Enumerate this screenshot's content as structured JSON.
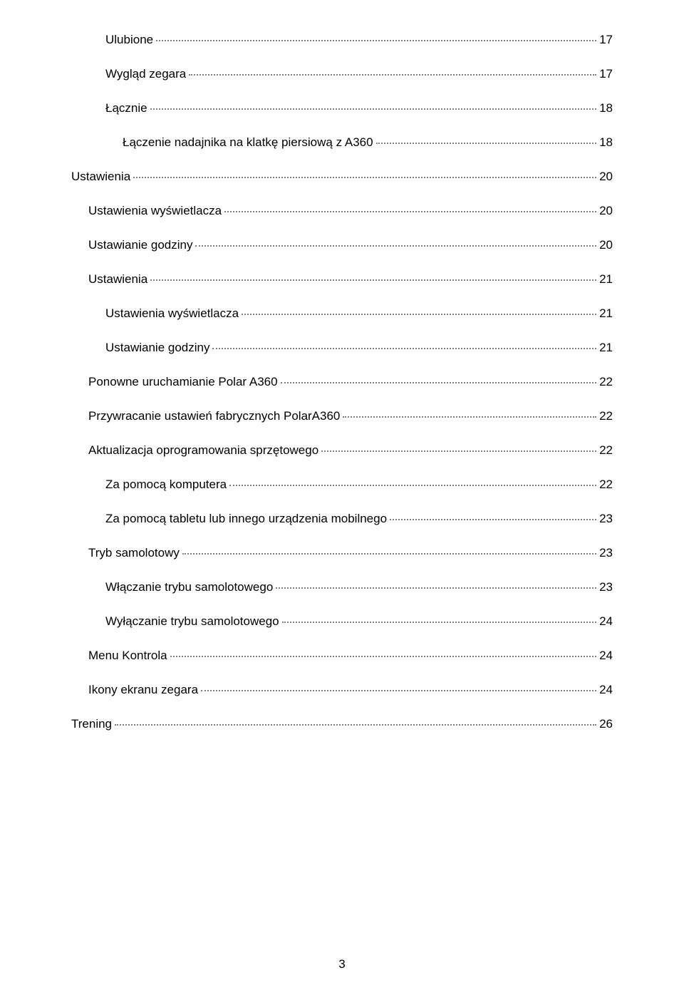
{
  "text_color": "#000000",
  "dot_color": "#808080",
  "background_color": "#ffffff",
  "font_size": 17,
  "line_spacing": 28,
  "indent_step": 24,
  "page_number": "3",
  "toc": [
    {
      "label": "Ulubione",
      "page": "17",
      "level": 2
    },
    {
      "label": "Wygląd zegara",
      "page": "17",
      "level": 2
    },
    {
      "label": "Łącznie",
      "page": "18",
      "level": 2
    },
    {
      "label": "Łączenie nadajnika na klatkę piersiową z A360",
      "page": "18",
      "level": 3
    },
    {
      "label": "Ustawienia",
      "page": "20",
      "level": 0
    },
    {
      "label": "Ustawienia wyświetlacza",
      "page": "20",
      "level": 1
    },
    {
      "label": "Ustawianie godziny",
      "page": "20",
      "level": 1
    },
    {
      "label": "Ustawienia",
      "page": "21",
      "level": 1
    },
    {
      "label": "Ustawienia wyświetlacza",
      "page": "21",
      "level": 2
    },
    {
      "label": "Ustawianie godziny",
      "page": "21",
      "level": 2
    },
    {
      "label": "Ponowne uruchamianie Polar A360",
      "page": "22",
      "level": 1
    },
    {
      "label": "Przywracanie ustawień fabrycznych PolarA360",
      "page": "22",
      "level": 1
    },
    {
      "label": "Aktualizacja oprogramowania sprzętowego",
      "page": "22",
      "level": 1
    },
    {
      "label": "Za pomocą komputera",
      "page": "22",
      "level": 2
    },
    {
      "label": "Za pomocą tabletu lub innego urządzenia mobilnego",
      "page": "23",
      "level": 2
    },
    {
      "label": "Tryb samolotowy",
      "page": "23",
      "level": 1
    },
    {
      "label": "Włączanie trybu samolotowego",
      "page": "23",
      "level": 2
    },
    {
      "label": "Wyłączanie trybu samolotowego",
      "page": "24",
      "level": 2
    },
    {
      "label": "Menu Kontrola",
      "page": "24",
      "level": 1
    },
    {
      "label": "Ikony ekranu zegara",
      "page": "24",
      "level": 1
    },
    {
      "label": "Trening",
      "page": "26",
      "level": 0
    }
  ]
}
